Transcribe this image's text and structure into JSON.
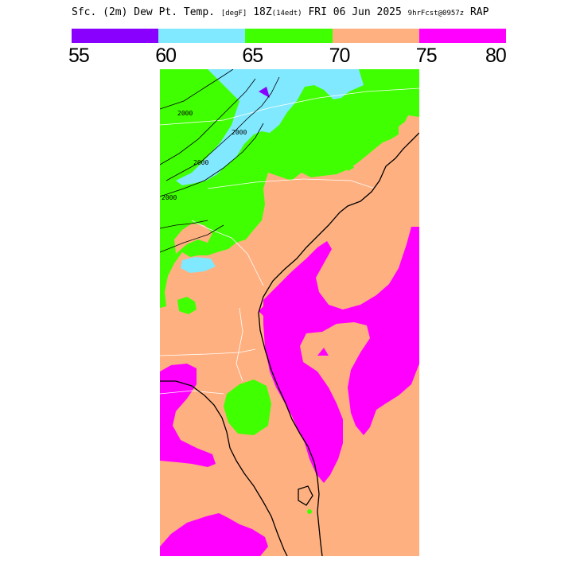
{
  "header": {
    "title_main": "Sfc. (2m) Dew Pt. Temp.",
    "title_units": "[degF]",
    "title_time": "18Z",
    "title_local": "(14edt)",
    "title_date": "FRI 06 Jun 2025",
    "title_fcst": "9hrFcst@0957z",
    "title_model": "RAP"
  },
  "legend": {
    "colors": [
      "#8a00ff",
      "#80e8ff",
      "#40ff00",
      "#ffb080",
      "#ff00ff"
    ],
    "ticks": [
      "55",
      "60",
      "65",
      "70",
      "75",
      "80"
    ]
  },
  "map": {
    "colors": {
      "band_55_60": "#8a00ff",
      "band_60_65": "#80e8ff",
      "band_65_70": "#40ff00",
      "band_70_75": "#ffb080",
      "band_75_80": "#ff00ff",
      "contour": "#000000",
      "borders": "#ffffff"
    },
    "contour_labels": [
      "2000",
      "2000",
      "2000",
      "2000"
    ]
  }
}
